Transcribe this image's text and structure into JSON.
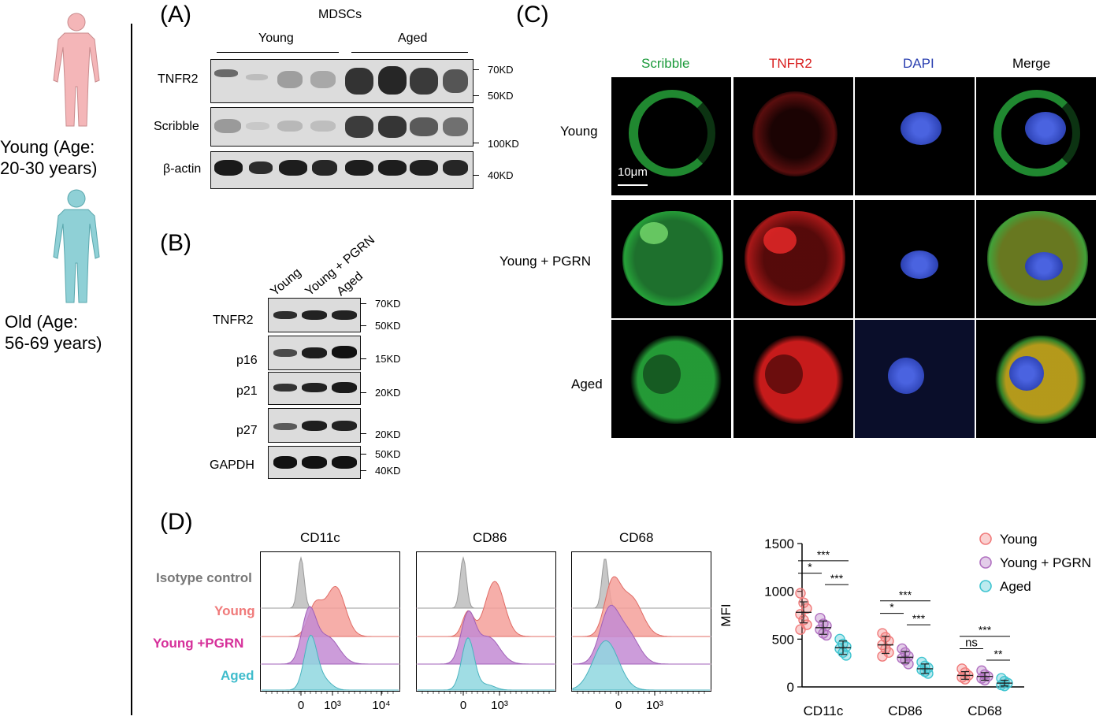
{
  "left": {
    "young_label": "Young (Age: 20-30 years)",
    "young_line1": "Young (Age:",
    "young_line2": "20-30 years)",
    "old_line1": "Old (Age:",
    "old_line2": "56-69 years)",
    "colors": {
      "young_body": "#f4b6b8",
      "old_body": "#8fd0d6"
    }
  },
  "panel_a": {
    "letter": "(A)",
    "title": "MDSCs",
    "group_young": "Young",
    "group_aged": "Aged",
    "rows": [
      {
        "name": "TNFR2",
        "markers": [
          "70KD",
          "50KD"
        ]
      },
      {
        "name": "Scribble",
        "markers": [
          "100KD"
        ]
      },
      {
        "name": "β-actin",
        "markers": [
          "40KD"
        ]
      }
    ]
  },
  "panel_b": {
    "letter": "(B)",
    "lanes": [
      "Young",
      "Young + PGRN",
      "Aged"
    ],
    "rows": [
      {
        "name": "TNFR2",
        "markers": [
          "70KD",
          "50KD"
        ]
      },
      {
        "name": "p16",
        "markers": [
          "15KD"
        ]
      },
      {
        "name": "p21",
        "markers": [
          "20KD"
        ]
      },
      {
        "name": "p27",
        "markers": [
          "20KD"
        ]
      },
      {
        "name": "GAPDH",
        "markers": [
          "50KD",
          "40KD"
        ]
      }
    ]
  },
  "panel_c": {
    "letter": "(C)",
    "columns": [
      {
        "label": "Scribble",
        "color": "#1a9a3a"
      },
      {
        "label": "TNFR2",
        "color": "#d81e1e"
      },
      {
        "label": "DAPI",
        "color": "#2a3fb0"
      },
      {
        "label": "Merge",
        "color": "#000000"
      }
    ],
    "rows": [
      "Young",
      "Young + PGRN",
      "Aged"
    ],
    "scale_bar": "10μm"
  },
  "panel_d": {
    "letter": "(D)",
    "hist_titles": [
      "CD11c",
      "CD86",
      "CD68"
    ],
    "legend_rows": [
      {
        "label": "Isotype control",
        "color": "#777777"
      },
      {
        "label": "Young",
        "color": "#f07a7a"
      },
      {
        "label": "Young +PGRN",
        "color": "#d6309a"
      },
      {
        "label": "Aged",
        "color": "#3fbccc"
      }
    ],
    "x_ticks_1": [
      "0",
      "10³",
      "10⁴"
    ],
    "x_ticks_2": [
      "0",
      "10³"
    ],
    "x_ticks_3": [
      "0",
      "10³"
    ]
  },
  "chart_data": {
    "type": "scatter",
    "categories": [
      "CD11c",
      "CD86",
      "CD68"
    ],
    "ylabel": "MFI",
    "ylim": [
      0,
      1500
    ],
    "yticks": [
      "0",
      "500",
      "1000",
      "1500"
    ],
    "legend_position": "top-right",
    "series": [
      {
        "name": "Young",
        "color": "#f07a7a",
        "points": [
          [
            980,
            880,
            820,
            760,
            700,
            650,
            600
          ],
          [
            560,
            520,
            480,
            440,
            400,
            360,
            320
          ],
          [
            190,
            150,
            120,
            100,
            80
          ]
        ],
        "means": [
          780,
          440,
          120
        ],
        "sd": [
          110,
          90,
          40
        ]
      },
      {
        "name": "Young + PGRN",
        "color": "#b070c0",
        "points": [
          [
            720,
            660,
            640,
            600,
            560,
            540
          ],
          [
            400,
            360,
            320,
            300,
            280,
            240
          ],
          [
            170,
            130,
            110,
            90,
            70
          ]
        ],
        "means": [
          620,
          310,
          110
        ],
        "sd": [
          70,
          60,
          40
        ]
      },
      {
        "name": "Aged",
        "color": "#3fc4d0",
        "points": [
          [
            500,
            450,
            420,
            400,
            360,
            330
          ],
          [
            260,
            220,
            200,
            180,
            160,
            140
          ],
          [
            90,
            60,
            40,
            20,
            10
          ]
        ],
        "means": [
          410,
          190,
          40
        ],
        "sd": [
          70,
          50,
          30
        ]
      }
    ],
    "significance": [
      {
        "group": "CD11c",
        "pairs": [
          {
            "label": "***",
            "level": 3
          },
          {
            "label": "*",
            "level": 2
          },
          {
            "label": "***",
            "level": 1
          }
        ]
      },
      {
        "group": "CD86",
        "pairs": [
          {
            "label": "***",
            "level": 3
          },
          {
            "label": "*",
            "level": 2
          },
          {
            "label": "***",
            "level": 1
          }
        ]
      },
      {
        "group": "CD68",
        "pairs": [
          {
            "label": "***",
            "level": 3
          },
          {
            "label": "ns",
            "level": 2
          },
          {
            "label": "**",
            "level": 1
          }
        ]
      }
    ]
  }
}
